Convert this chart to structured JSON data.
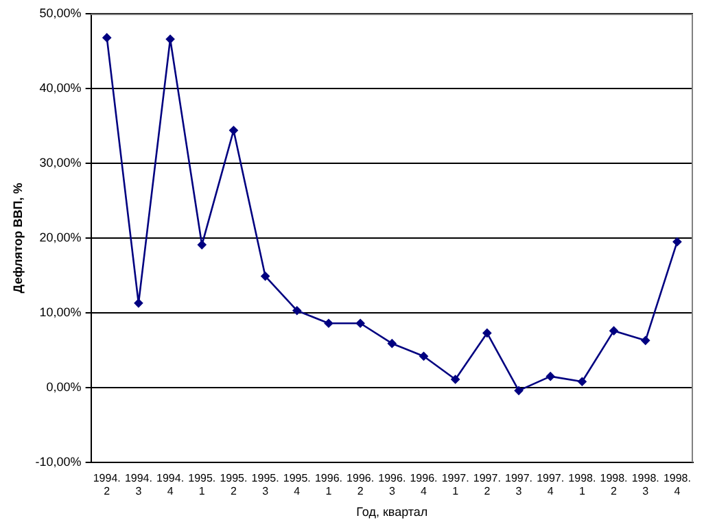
{
  "chart_data": {
    "type": "line",
    "xlabel": "Год, квартал",
    "ylabel": "Дефлятор ВВП, %",
    "categories": [
      "1994.\n2",
      "1994.\n3",
      "1994.\n4",
      "1995.\n1",
      "1995.\n2",
      "1995.\n3",
      "1995.\n4",
      "1996.\n1",
      "1996.\n2",
      "1996.\n3",
      "1996.\n4",
      "1997.\n1",
      "1997.\n2",
      "1997.\n3",
      "1997.\n4",
      "1998.\n1",
      "1998.\n2",
      "1998.\n3",
      "1998.\n4"
    ],
    "series": [
      {
        "color": "#000080",
        "values": [
          46.8,
          11.3,
          46.6,
          19.1,
          34.4,
          14.9,
          10.3,
          8.6,
          8.6,
          5.9,
          4.2,
          1.1,
          7.3,
          -0.4,
          1.5,
          0.8,
          7.6,
          6.3,
          19.5
        ]
      }
    ],
    "ylim": [
      -10,
      50
    ],
    "yticks": [
      {
        "value": -10,
        "label": "-10,00%"
      },
      {
        "value": 0,
        "label": "0,00%"
      },
      {
        "value": 10,
        "label": "10,00%"
      },
      {
        "value": 20,
        "label": "20,00%"
      },
      {
        "value": 30,
        "label": "30,00%"
      },
      {
        "value": 40,
        "label": "40,00%"
      },
      {
        "value": 50,
        "label": "50,00%"
      }
    ],
    "grid": "y",
    "legend": false,
    "marker": "diamond",
    "line_style": "solid"
  }
}
